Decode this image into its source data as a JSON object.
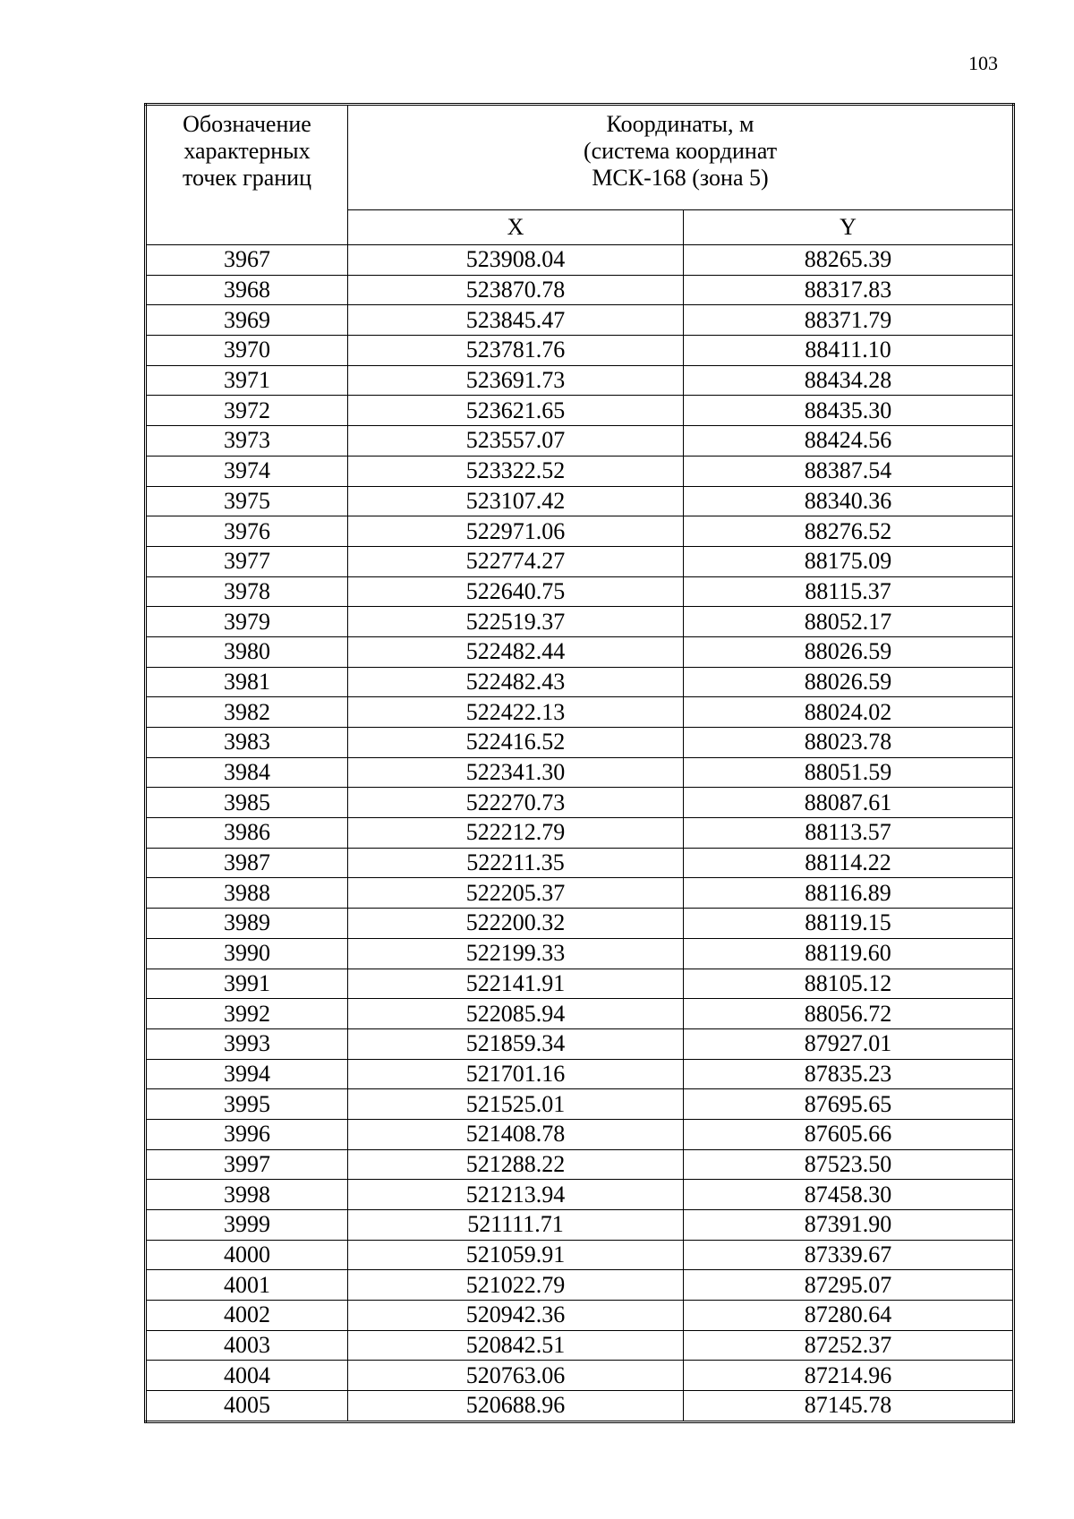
{
  "page_number": "103",
  "header": {
    "col1": [
      "Обозначение",
      "характерных",
      "точек границ"
    ],
    "coords": [
      "Координаты, м",
      "(система координат",
      "МСК-168 (зона 5)"
    ],
    "x": "X",
    "y": "Y"
  },
  "rows": [
    [
      "3967",
      "523908.04",
      "88265.39"
    ],
    [
      "3968",
      "523870.78",
      "88317.83"
    ],
    [
      "3969",
      "523845.47",
      "88371.79"
    ],
    [
      "3970",
      "523781.76",
      "88411.10"
    ],
    [
      "3971",
      "523691.73",
      "88434.28"
    ],
    [
      "3972",
      "523621.65",
      "88435.30"
    ],
    [
      "3973",
      "523557.07",
      "88424.56"
    ],
    [
      "3974",
      "523322.52",
      "88387.54"
    ],
    [
      "3975",
      "523107.42",
      "88340.36"
    ],
    [
      "3976",
      "522971.06",
      "88276.52"
    ],
    [
      "3977",
      "522774.27",
      "88175.09"
    ],
    [
      "3978",
      "522640.75",
      "88115.37"
    ],
    [
      "3979",
      "522519.37",
      "88052.17"
    ],
    [
      "3980",
      "522482.44",
      "88026.59"
    ],
    [
      "3981",
      "522482.43",
      "88026.59"
    ],
    [
      "3982",
      "522422.13",
      "88024.02"
    ],
    [
      "3983",
      "522416.52",
      "88023.78"
    ],
    [
      "3984",
      "522341.30",
      "88051.59"
    ],
    [
      "3985",
      "522270.73",
      "88087.61"
    ],
    [
      "3986",
      "522212.79",
      "88113.57"
    ],
    [
      "3987",
      "522211.35",
      "88114.22"
    ],
    [
      "3988",
      "522205.37",
      "88116.89"
    ],
    [
      "3989",
      "522200.32",
      "88119.15"
    ],
    [
      "3990",
      "522199.33",
      "88119.60"
    ],
    [
      "3991",
      "522141.91",
      "88105.12"
    ],
    [
      "3992",
      "522085.94",
      "88056.72"
    ],
    [
      "3993",
      "521859.34",
      "87927.01"
    ],
    [
      "3994",
      "521701.16",
      "87835.23"
    ],
    [
      "3995",
      "521525.01",
      "87695.65"
    ],
    [
      "3996",
      "521408.78",
      "87605.66"
    ],
    [
      "3997",
      "521288.22",
      "87523.50"
    ],
    [
      "3998",
      "521213.94",
      "87458.30"
    ],
    [
      "3999",
      "521111.71",
      "87391.90"
    ],
    [
      "4000",
      "521059.91",
      "87339.67"
    ],
    [
      "4001",
      "521022.79",
      "87295.07"
    ],
    [
      "4002",
      "520942.36",
      "87280.64"
    ],
    [
      "4003",
      "520842.51",
      "87252.37"
    ],
    [
      "4004",
      "520763.06",
      "87214.96"
    ],
    [
      "4005",
      "520688.96",
      "87145.78"
    ]
  ]
}
